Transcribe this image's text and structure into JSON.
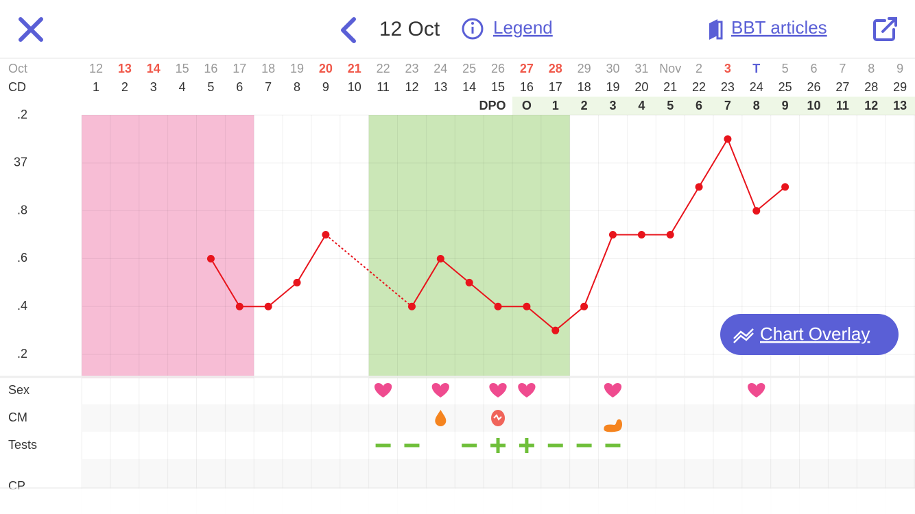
{
  "header": {
    "date": "12 Oct",
    "legend": "Legend",
    "articles": "BBT articles"
  },
  "chart_data": {
    "type": "line",
    "row_labels": {
      "month": "Oct",
      "cd": "CD",
      "dpo": "DPO"
    },
    "dates": [
      "12",
      "13",
      "14",
      "15",
      "16",
      "17",
      "18",
      "19",
      "20",
      "21",
      "22",
      "23",
      "24",
      "25",
      "26",
      "27",
      "28",
      "29",
      "30",
      "31",
      "Nov",
      "2",
      "3",
      "T",
      "5",
      "6",
      "7",
      "8",
      "9"
    ],
    "date_colors": [
      "#999",
      "#f0584a",
      "#f0584a",
      "#999",
      "#999",
      "#999",
      "#999",
      "#999",
      "#f0584a",
      "#f0584a",
      "#999",
      "#999",
      "#999",
      "#999",
      "#999",
      "#f0584a",
      "#f0584a",
      "#999",
      "#999",
      "#999",
      "#999",
      "#999",
      "#f0584a",
      "#5a5fd6",
      "#999",
      "#999",
      "#999",
      "#999",
      "#999"
    ],
    "categories": [
      1,
      2,
      3,
      4,
      5,
      6,
      7,
      8,
      9,
      10,
      11,
      12,
      13,
      14,
      15,
      16,
      17,
      18,
      19,
      20,
      21,
      22,
      23,
      24,
      25,
      26,
      27,
      28,
      29
    ],
    "dpo": [
      null,
      null,
      null,
      null,
      null,
      null,
      null,
      null,
      null,
      null,
      null,
      null,
      null,
      null,
      null,
      "O",
      1,
      2,
      3,
      4,
      5,
      6,
      7,
      8,
      9,
      10,
      11,
      12,
      13
    ],
    "values": [
      null,
      null,
      null,
      null,
      36.6,
      36.4,
      36.4,
      36.5,
      36.7,
      null,
      null,
      36.4,
      36.6,
      36.5,
      36.4,
      36.4,
      36.3,
      36.4,
      36.7,
      36.7,
      36.7,
      36.9,
      37.1,
      36.8,
      36.9,
      null,
      null,
      null,
      null
    ],
    "color": "#e8141c",
    "ylim": [
      36.1,
      37.2
    ],
    "yticks": [
      {
        "value": 37.2,
        "label": ".2"
      },
      37,
      {
        "value": 36.8,
        "label": ".8"
      },
      {
        "value": 36.6,
        "label": ".6"
      },
      {
        "value": 36.4,
        "label": ".4"
      },
      {
        "value": 36.2,
        "label": ".2"
      }
    ],
    "grid": true,
    "period": [
      1,
      6
    ],
    "period_color": "#f7bdd5",
    "fertile": [
      11,
      17
    ],
    "fertile_color": "#cbe7b7"
  },
  "tracking": [
    {
      "label": "Sex",
      "marks": [
        {
          "day": 11,
          "kind": "heart"
        },
        {
          "day": 13,
          "kind": "heart"
        },
        {
          "day": 15,
          "kind": "heart"
        },
        {
          "day": 16,
          "kind": "heart"
        },
        {
          "day": 19,
          "kind": "heart"
        },
        {
          "day": 24,
          "kind": "heart"
        }
      ]
    },
    {
      "label": "CM",
      "marks": [
        {
          "day": 13,
          "kind": "drop"
        },
        {
          "day": 15,
          "kind": "egg"
        },
        {
          "day": 19,
          "kind": "cream"
        }
      ]
    },
    {
      "label": "Tests",
      "marks": [
        {
          "day": 11,
          "kind": "minus"
        },
        {
          "day": 12,
          "kind": "minus"
        },
        {
          "day": 14,
          "kind": "minus"
        },
        {
          "day": 15,
          "kind": "plus"
        },
        {
          "day": 16,
          "kind": "plus"
        },
        {
          "day": 17,
          "kind": "minus"
        },
        {
          "day": 18,
          "kind": "minus"
        },
        {
          "day": 19,
          "kind": "minus"
        }
      ]
    },
    {
      "label": "CP",
      "marks": []
    }
  ],
  "button": "Chart Overlay"
}
